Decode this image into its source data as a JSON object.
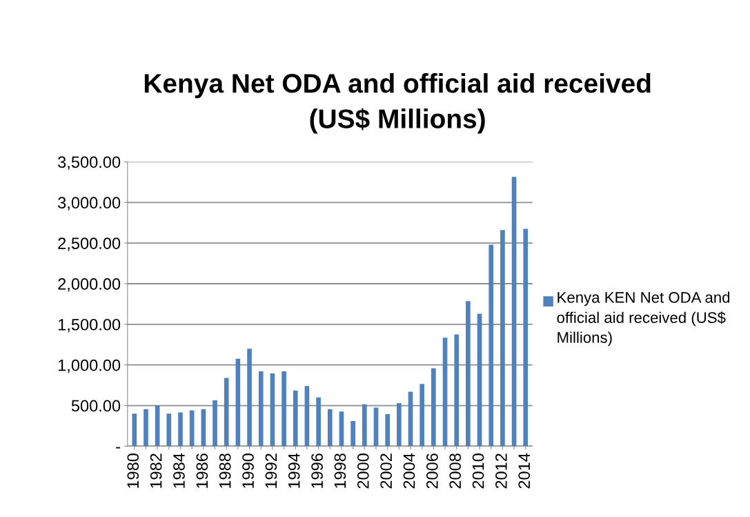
{
  "chart_data": {
    "type": "bar",
    "title": "Kenya Net ODA and official aid received\n(US$ Millions)",
    "categories": [
      "1980",
      null,
      "1982",
      null,
      "1984",
      null,
      "1986",
      null,
      "1988",
      null,
      "1990",
      null,
      "1992",
      null,
      "1994",
      null,
      "1996",
      null,
      "1998",
      null,
      "2000",
      null,
      "2002",
      null,
      "2004",
      null,
      "2006",
      null,
      "2008",
      null,
      "2010",
      null,
      "2012",
      null,
      "2014"
    ],
    "series": [
      {
        "name": "Kenya KEN Net ODA and official aid received (US$ Millions)",
        "color": "#4f81bd",
        "values": [
          400,
          455,
          500,
          400,
          415,
          440,
          455,
          565,
          840,
          1075,
          1200,
          920,
          895,
          920,
          685,
          740,
          600,
          455,
          425,
          310,
          515,
          475,
          395,
          530,
          670,
          765,
          960,
          1335,
          1375,
          1785,
          1630,
          2480,
          2660,
          3315,
          2675
        ]
      }
    ],
    "ylim": [
      0,
      3500
    ],
    "yticks": [
      {
        "value": 0,
        "label": "-"
      },
      {
        "value": 500,
        "label": "500.00"
      },
      {
        "value": 1000,
        "label": "1,000.00"
      },
      {
        "value": 1500,
        "label": "1,500.00"
      },
      {
        "value": 2000,
        "label": "2,000.00"
      },
      {
        "value": 2500,
        "label": "2,500.00"
      },
      {
        "value": 3000,
        "label": "3,000.00"
      },
      {
        "value": 3500,
        "label": "3,500.00"
      }
    ],
    "grid": "y",
    "legend": "right"
  }
}
